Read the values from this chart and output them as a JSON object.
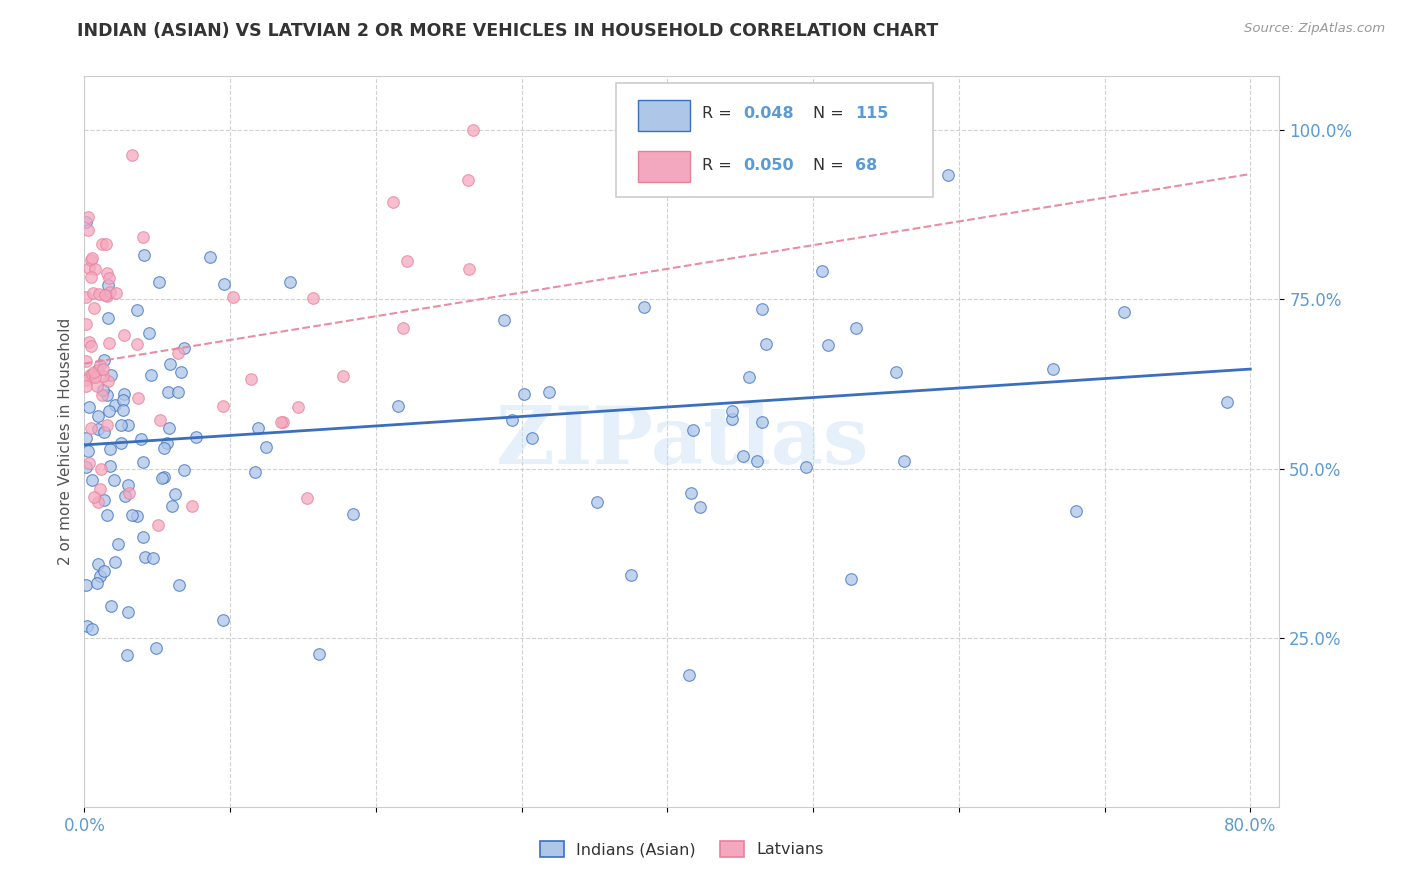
{
  "title": "INDIAN (ASIAN) VS LATVIAN 2 OR MORE VEHICLES IN HOUSEHOLD CORRELATION CHART",
  "source": "Source: ZipAtlas.com",
  "ylabel": "2 or more Vehicles in Household",
  "color_indian": "#aec6e8",
  "color_latvian": "#f4a8c0",
  "color_trend_indian": "#3a6fbf",
  "color_trend_latvian": "#e8809a",
  "watermark": "ZIPatlas",
  "background": "#ffffff",
  "grid_color": "#cccccc",
  "tick_color": "#5b9bd5",
  "title_color": "#333333",
  "source_color": "#999999",
  "ylabel_color": "#555555"
}
